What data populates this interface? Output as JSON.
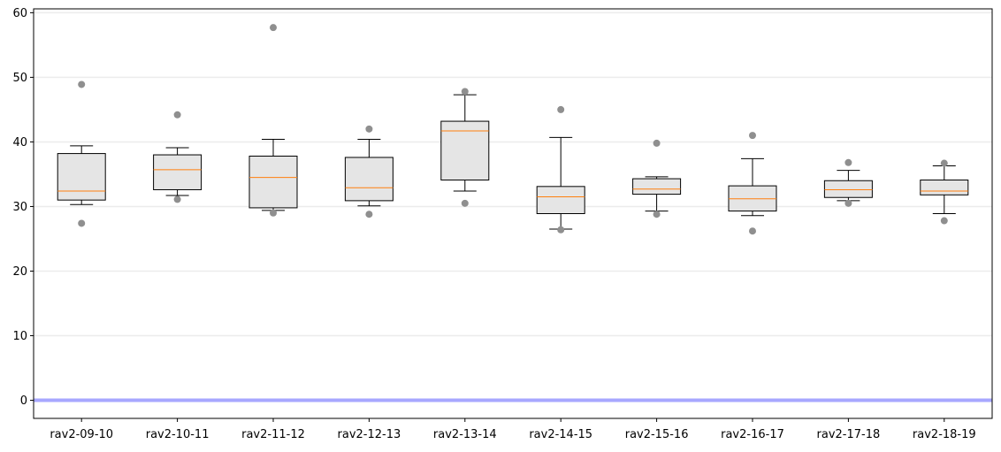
{
  "chart_data": {
    "type": "box",
    "categories": [
      "rav2-09-10",
      "rav2-10-11",
      "rav2-11-12",
      "rav2-12-13",
      "rav2-13-14",
      "rav2-14-15",
      "rav2-15-16",
      "rav2-16-17",
      "rav2-17-18",
      "rav2-18-19"
    ],
    "boxes": [
      {
        "whisker_low": 30.3,
        "q1": 31.0,
        "median": 32.4,
        "q3": 38.2,
        "whisker_high": 39.4,
        "outliers": [
          48.9,
          27.4
        ]
      },
      {
        "whisker_low": 31.7,
        "q1": 32.6,
        "median": 35.7,
        "q3": 38.0,
        "whisker_high": 39.1,
        "outliers": [
          44.2,
          31.1
        ]
      },
      {
        "whisker_low": 29.4,
        "q1": 29.8,
        "median": 34.5,
        "q3": 37.8,
        "whisker_high": 40.4,
        "outliers": [
          57.7,
          29.0
        ]
      },
      {
        "whisker_low": 30.1,
        "q1": 30.9,
        "median": 32.9,
        "q3": 37.6,
        "whisker_high": 40.4,
        "outliers": [
          42.0,
          28.8
        ]
      },
      {
        "whisker_low": 32.4,
        "q1": 34.1,
        "median": 41.7,
        "q3": 43.2,
        "whisker_high": 47.3,
        "outliers": [
          47.8,
          30.5
        ]
      },
      {
        "whisker_low": 26.5,
        "q1": 28.9,
        "median": 31.5,
        "q3": 33.1,
        "whisker_high": 40.7,
        "outliers": [
          45.0,
          26.4
        ]
      },
      {
        "whisker_low": 29.3,
        "q1": 31.9,
        "median": 32.7,
        "q3": 34.3,
        "whisker_high": 34.6,
        "outliers": [
          39.8,
          28.8
        ]
      },
      {
        "whisker_low": 28.6,
        "q1": 29.3,
        "median": 31.2,
        "q3": 33.2,
        "whisker_high": 37.4,
        "outliers": [
          41.0,
          26.2
        ]
      },
      {
        "whisker_low": 30.9,
        "q1": 31.4,
        "median": 32.6,
        "q3": 34.0,
        "whisker_high": 35.6,
        "outliers": [
          36.8,
          30.5
        ]
      },
      {
        "whisker_low": 28.9,
        "q1": 31.8,
        "median": 32.4,
        "q3": 34.1,
        "whisker_high": 36.3,
        "outliers": [
          36.7,
          27.8
        ]
      }
    ],
    "ylim": [
      -2.8,
      60.6
    ],
    "yticks": [
      0,
      10,
      20,
      30,
      40,
      50,
      60
    ],
    "grid": "horizontal",
    "reference_line": {
      "y": 0,
      "color": "#a7a7ff"
    },
    "colors": {
      "box_fill": "#e5e5e5",
      "median": "#ff7f0e",
      "outlier": "#8f8f8f",
      "grid": "#ececec"
    },
    "title": "",
    "xlabel": "",
    "ylabel": ""
  }
}
